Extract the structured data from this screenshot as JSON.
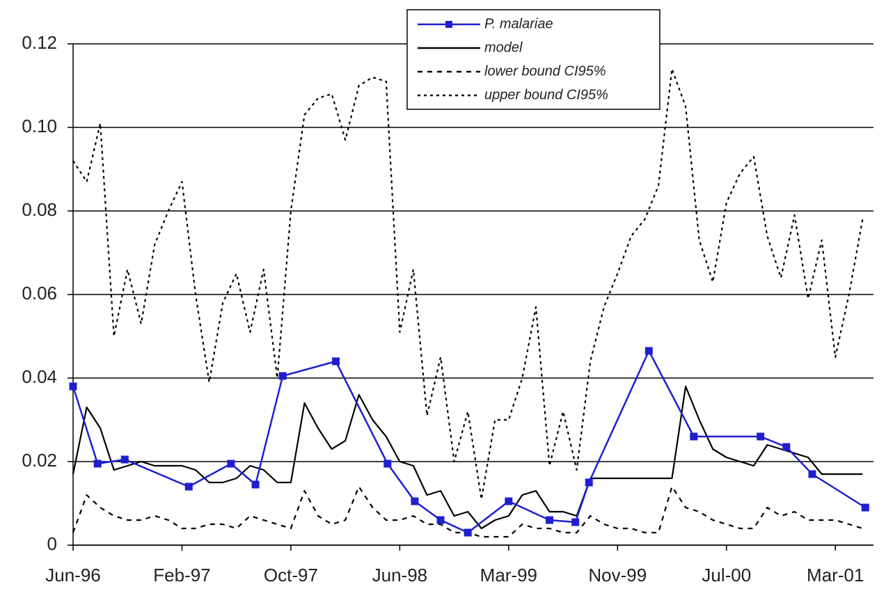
{
  "chart_data": {
    "type": "line",
    "xlim": [
      0,
      58.8
    ],
    "xticks": [
      {
        "value": 0,
        "label": "Jun-96"
      },
      {
        "value": 8,
        "label": "Feb-97"
      },
      {
        "value": 16,
        "label": "Oct-97"
      },
      {
        "value": 24,
        "label": "Jun-98"
      },
      {
        "value": 32,
        "label": "Mar-99"
      },
      {
        "value": 40,
        "label": "Nov-99"
      },
      {
        "value": 48,
        "label": "Jul-00"
      },
      {
        "value": 56,
        "label": "Mar-01"
      }
    ],
    "ylim": [
      0,
      0.12
    ],
    "yticks": [
      0,
      0.02,
      0.04,
      0.06,
      0.08,
      {
        "value": 0.1,
        "label": "0.10"
      },
      0.12
    ],
    "grid": true,
    "legend": "top",
    "series": [
      {
        "name": "P. malariae",
        "color": "#1f1fd0",
        "marker": true,
        "dash": "none",
        "x": [
          0,
          1.8,
          3.8,
          8.5,
          11.6,
          13.4,
          15.4,
          19.3,
          23.1,
          25.1,
          27.0,
          29.0,
          32.0,
          35.0,
          36.9,
          37.9,
          42.3,
          45.6,
          50.5,
          52.4,
          54.3,
          58.2
        ],
        "values": [
          0.038,
          0.0195,
          0.0205,
          0.014,
          0.0195,
          0.0145,
          0.0405,
          0.044,
          0.0195,
          0.0105,
          0.006,
          0.003,
          0.0105,
          0.006,
          0.0055,
          0.015,
          0.0465,
          0.026,
          0.026,
          0.0235,
          0.017,
          0.009
        ]
      },
      {
        "name": "model",
        "color": "#000000",
        "marker": false,
        "dash": "none",
        "x": [
          0,
          1,
          2,
          3,
          4,
          5,
          6,
          7,
          8,
          9,
          10,
          11,
          12,
          13,
          14,
          15,
          16,
          17,
          18,
          19,
          20,
          21,
          22,
          23,
          24,
          25,
          26,
          27,
          28,
          29,
          30,
          31,
          32,
          33,
          34,
          35,
          36,
          37,
          38,
          39,
          40,
          41,
          42,
          43,
          44,
          45,
          46,
          47,
          48,
          49,
          50,
          51,
          52,
          53,
          54,
          55,
          56,
          57,
          58
        ],
        "values": [
          0.017,
          0.033,
          0.028,
          0.018,
          0.019,
          0.02,
          0.019,
          0.019,
          0.019,
          0.018,
          0.015,
          0.015,
          0.016,
          0.019,
          0.018,
          0.015,
          0.015,
          0.034,
          0.028,
          0.023,
          0.025,
          0.036,
          0.03,
          0.026,
          0.02,
          0.019,
          0.012,
          0.013,
          0.007,
          0.008,
          0.004,
          0.006,
          0.007,
          0.012,
          0.013,
          0.008,
          0.008,
          0.007,
          0.016,
          0.016,
          0.016,
          0.016,
          0.016,
          0.016,
          0.016,
          0.038,
          0.03,
          0.023,
          0.021,
          0.02,
          0.019,
          0.024,
          0.023,
          0.022,
          0.021,
          0.017,
          0.017,
          0.017,
          0.017
        ]
      },
      {
        "name": "lower bound CI95%",
        "color": "#000000",
        "marker": false,
        "dash": "7 7",
        "x": [
          0,
          1,
          2,
          3,
          4,
          5,
          6,
          7,
          8,
          9,
          10,
          11,
          12,
          13,
          14,
          15,
          16,
          17,
          18,
          19,
          20,
          21,
          22,
          23,
          24,
          25,
          26,
          27,
          28,
          29,
          30,
          31,
          32,
          33,
          34,
          35,
          36,
          37,
          38,
          39,
          40,
          41,
          42,
          43,
          44,
          45,
          46,
          47,
          48,
          49,
          50,
          51,
          52,
          53,
          54,
          55,
          56,
          57,
          58
        ],
        "values": [
          0.003,
          0.012,
          0.009,
          0.007,
          0.006,
          0.006,
          0.007,
          0.006,
          0.004,
          0.004,
          0.005,
          0.005,
          0.004,
          0.007,
          0.006,
          0.005,
          0.004,
          0.013,
          0.007,
          0.005,
          0.006,
          0.014,
          0.009,
          0.006,
          0.006,
          0.007,
          0.005,
          0.005,
          0.003,
          0.003,
          0.002,
          0.002,
          0.002,
          0.005,
          0.004,
          0.004,
          0.003,
          0.003,
          0.007,
          0.005,
          0.004,
          0.004,
          0.003,
          0.003,
          0.014,
          0.009,
          0.008,
          0.006,
          0.005,
          0.004,
          0.004,
          0.009,
          0.007,
          0.008,
          0.006,
          0.006,
          0.006,
          0.005,
          0.004
        ]
      },
      {
        "name": "upper bound CI95%",
        "color": "#000000",
        "marker": false,
        "dash": "4 5",
        "x": [
          0,
          1,
          2,
          3,
          4,
          5,
          6,
          7,
          8,
          9,
          10,
          11,
          12,
          13,
          14,
          15,
          16,
          17,
          18,
          19,
          20,
          21,
          22,
          23,
          24,
          25,
          26,
          27,
          28,
          29,
          30,
          31,
          32,
          33,
          34,
          35,
          36,
          37,
          38,
          39,
          40,
          41,
          42,
          43,
          44,
          45,
          46,
          47,
          48,
          49,
          50,
          51,
          52,
          53,
          54,
          55,
          56,
          57,
          58
        ],
        "values": [
          0.092,
          0.087,
          0.101,
          0.05,
          0.066,
          0.053,
          0.072,
          0.08,
          0.087,
          0.06,
          0.039,
          0.058,
          0.065,
          0.051,
          0.066,
          0.04,
          0.08,
          0.103,
          0.107,
          0.108,
          0.097,
          0.11,
          0.112,
          0.111,
          0.051,
          0.066,
          0.031,
          0.045,
          0.02,
          0.032,
          0.011,
          0.03,
          0.03,
          0.04,
          0.057,
          0.019,
          0.032,
          0.018,
          0.044,
          0.057,
          0.065,
          0.074,
          0.078,
          0.086,
          0.114,
          0.105,
          0.073,
          0.063,
          0.082,
          0.089,
          0.093,
          0.074,
          0.064,
          0.079,
          0.059,
          0.073,
          0.045,
          0.06,
          0.078
        ]
      }
    ]
  }
}
